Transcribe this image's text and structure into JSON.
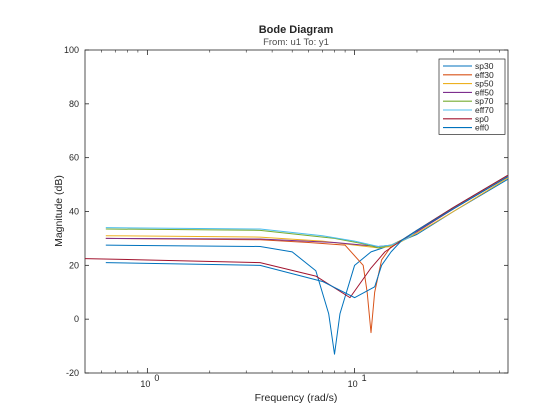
{
  "chart_data": {
    "type": "line",
    "title": "Bode Diagram",
    "subtitle": "From: u1  To: y1",
    "xlabel": "Frequency  (rad/s)",
    "ylabel": "Magnitude (dB)",
    "x_scale": "log",
    "xlim": [
      0.5,
      55
    ],
    "ylim": [
      -20,
      100
    ],
    "x_ticks": [
      {
        "value": 1,
        "label": "10",
        "exp": "0"
      },
      {
        "value": 10,
        "label": "10",
        "exp": "1"
      }
    ],
    "y_ticks": [
      -20,
      0,
      20,
      40,
      60,
      80,
      100
    ],
    "grid": false,
    "legend_position": "top-right",
    "series": [
      {
        "name": "sp30",
        "color": "#0072bd",
        "x": [
          0.63,
          3.5,
          5,
          6.5,
          7.5,
          8.0,
          8.5,
          10,
          12,
          15,
          20,
          30,
          55
        ],
        "y": [
          27.5,
          27,
          25,
          18,
          2,
          -13,
          2,
          20,
          25,
          27.5,
          31.5,
          40,
          52
        ]
      },
      {
        "name": "eff30",
        "color": "#d95319",
        "x": [
          0.63,
          3.5,
          6,
          9,
          11,
          11.5,
          12,
          12.5,
          13.5,
          15,
          20,
          30,
          55
        ],
        "y": [
          30,
          29.5,
          28.5,
          27.5,
          20,
          10,
          -5,
          10,
          22,
          27,
          32.5,
          41,
          53
        ]
      },
      {
        "name": "sp50",
        "color": "#edb120",
        "x": [
          0.63,
          3.5,
          7,
          10,
          13,
          15,
          17,
          20,
          30,
          55
        ],
        "y": [
          31,
          30.5,
          29,
          27.5,
          26.5,
          27,
          29,
          32,
          40,
          52.5
        ]
      },
      {
        "name": "eff50",
        "color": "#7e2f8e",
        "x": [
          0.63,
          3.5,
          8,
          11,
          13,
          15,
          17,
          20,
          30,
          55
        ],
        "y": [
          30,
          29.8,
          28.5,
          27.5,
          27,
          27.5,
          29.5,
          32.5,
          41,
          53
        ]
      },
      {
        "name": "sp70",
        "color": "#77ac30",
        "x": [
          0.63,
          3.5,
          8,
          11,
          13,
          15,
          17,
          20,
          30,
          55
        ],
        "y": [
          33.5,
          33,
          30,
          28,
          26.5,
          27.5,
          29.5,
          33,
          41.5,
          53.5
        ]
      },
      {
        "name": "eff70",
        "color": "#4dbeee",
        "x": [
          0.63,
          3.5,
          7,
          10,
          13,
          15,
          18,
          20,
          30,
          55
        ],
        "y": [
          34,
          33.5,
          31,
          29,
          27,
          27.5,
          30,
          33,
          41.5,
          53.5
        ]
      },
      {
        "name": "sp0",
        "color": "#a2142f",
        "x": [
          0.5,
          1,
          3.5,
          6.5,
          9.5,
          12,
          14,
          17,
          20,
          30,
          55
        ],
        "y": [
          22.5,
          22,
          21,
          16,
          8,
          19,
          25,
          29.5,
          33,
          41.5,
          53.5
        ]
      },
      {
        "name": "eff0",
        "color": "#0072bd",
        "x": [
          0.63,
          3.5,
          7,
          10,
          12.5,
          13.5,
          15,
          17,
          20,
          30,
          55
        ],
        "y": [
          21,
          20,
          14,
          8,
          12,
          20,
          25,
          29.5,
          33,
          41,
          53
        ]
      }
    ]
  }
}
